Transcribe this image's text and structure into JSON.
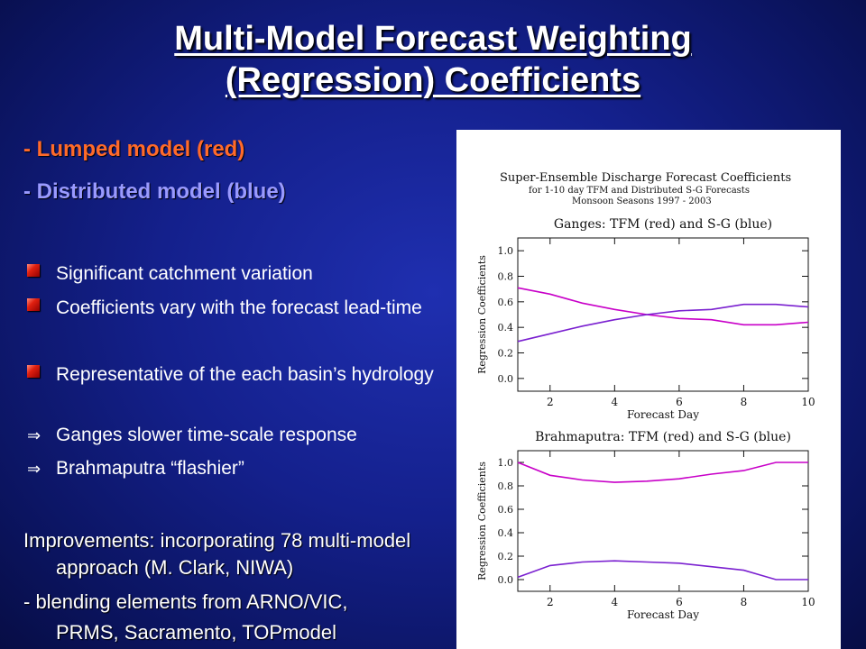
{
  "slide": {
    "title_line1": "Multi-Model Forecast Weighting",
    "title_line2": "(Regression) Coefficients",
    "model_red": "- Lumped model (red)",
    "model_blue": "- Distributed model (blue)",
    "bullets": [
      {
        "marker": "square-bullet-icon",
        "text": "Significant catchment variation"
      },
      {
        "marker": "square-bullet-icon",
        "text": "Coefficients vary with the forecast lead-time"
      },
      {
        "marker": "square-bullet-icon",
        "text": "Representative of the each basin’s hydrology"
      },
      {
        "marker": "implies-arrow-icon",
        "text": "Ganges slower time-scale response"
      },
      {
        "marker": "implies-arrow-icon",
        "text": "Brahmaputra “flashier”"
      }
    ],
    "improvements": "Improvements: incorporating 78 multi-model approach (M. Clark, NIWA)",
    "blending_line1": "- blending elements from ARNO/VIC,",
    "blending_line2": "PRMS, Sacramento, TOPmodel",
    "arrow_glyph": "⇒"
  },
  "figure": {
    "header_title": "Super-Ensemble Discharge Forecast Coefficients",
    "header_sub1": "for 1-10 day TFM and Distributed S-G Forecasts",
    "header_sub2": "Monsoon Seasons 1997 - 2003"
  },
  "chart_data": [
    {
      "type": "line",
      "title": "Ganges: TFM (red) and S-G (blue)",
      "xlabel": "Forecast Day",
      "ylabel": "Regression Coefficients",
      "xlim": [
        1,
        10
      ],
      "ylim": [
        -0.1,
        1.1
      ],
      "xticks": [
        2,
        4,
        6,
        8,
        10
      ],
      "yticks": [
        0.0,
        0.2,
        0.4,
        0.6,
        0.8,
        1.0
      ],
      "ytick_labels": [
        "0.0",
        "0.2",
        "0.4",
        "0.6",
        "0.8",
        "1.0"
      ],
      "x": [
        1,
        2,
        3,
        4,
        5,
        6,
        7,
        8,
        9,
        10
      ],
      "series": [
        {
          "color": "#c800c8",
          "values": [
            0.71,
            0.66,
            0.59,
            0.54,
            0.5,
            0.47,
            0.46,
            0.42,
            0.42,
            0.44
          ]
        },
        {
          "color": "#7a20d0",
          "values": [
            0.29,
            0.35,
            0.41,
            0.46,
            0.5,
            0.53,
            0.54,
            0.58,
            0.58,
            0.56
          ]
        }
      ]
    },
    {
      "type": "line",
      "title": "Brahmaputra: TFM (red) and S-G (blue)",
      "xlabel": "Forecast Day",
      "ylabel": "Regression Coefficients",
      "xlim": [
        1,
        10
      ],
      "ylim": [
        -0.1,
        1.1
      ],
      "xticks": [
        2,
        4,
        6,
        8,
        10
      ],
      "yticks": [
        0.0,
        0.2,
        0.4,
        0.6,
        0.8,
        1.0
      ],
      "ytick_labels": [
        "0.0",
        "0.2",
        "0.4",
        "0.6",
        "0.8",
        "1.0"
      ],
      "x": [
        1,
        2,
        3,
        4,
        5,
        6,
        7,
        8,
        9,
        10
      ],
      "series": [
        {
          "color": "#c800c8",
          "values": [
            1.0,
            0.89,
            0.85,
            0.83,
            0.84,
            0.86,
            0.9,
            0.93,
            1.0,
            1.0
          ]
        },
        {
          "color": "#7a20d0",
          "values": [
            0.02,
            0.12,
            0.15,
            0.16,
            0.15,
            0.14,
            0.11,
            0.08,
            0.0,
            0.0
          ]
        }
      ]
    }
  ]
}
